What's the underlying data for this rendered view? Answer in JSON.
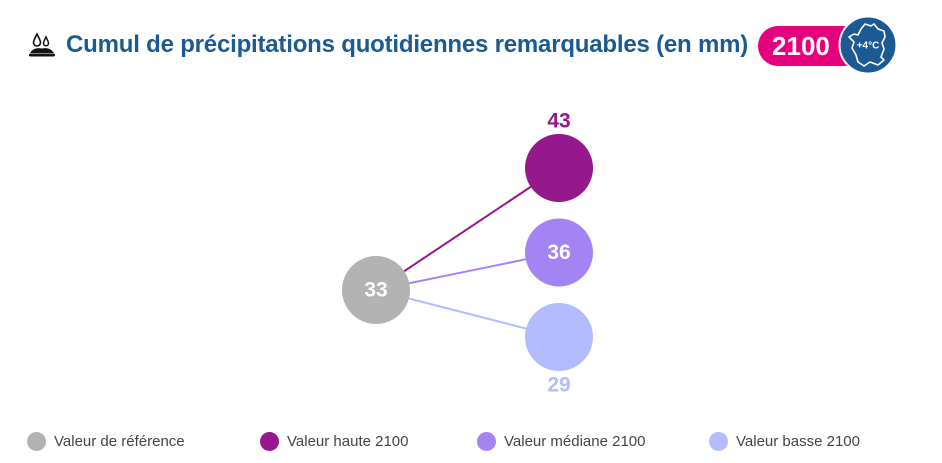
{
  "header": {
    "title": "Cumul de précipitations quotidiennes remarquables (en mm)",
    "year": "2100",
    "temperature": "+4°C",
    "rain_icon": "rain-puddle-icon",
    "badge_icon": "france-map-icon"
  },
  "colors": {
    "title": "#1b5a92",
    "year_pill": "#e5007e",
    "temp_badge": "#1b5a92",
    "reference": "#b3b3b3",
    "high": "#95188c",
    "median": "#a484f2",
    "low": "#b3bcff"
  },
  "chart_data": {
    "type": "scatter",
    "title": "Cumul de précipitations quotidiennes remarquables (en mm)",
    "reference": {
      "name": "Valeur de référence",
      "value": 33,
      "label": "33"
    },
    "series": [
      {
        "name": "Valeur haute 2100",
        "value": 43,
        "label": "43",
        "label_position": "above"
      },
      {
        "name": "Valeur médiane 2100",
        "value": 36,
        "label": "36",
        "label_position": "inside"
      },
      {
        "name": "Valeur basse 2100",
        "value": 29,
        "label": "29",
        "label_position": "below"
      }
    ],
    "legend": {
      "placement": "bottom",
      "entries": [
        "Valeur de référence",
        "Valeur haute 2100",
        "Valeur médiane 2100",
        "Valeur basse 2100"
      ]
    },
    "grid": false
  }
}
